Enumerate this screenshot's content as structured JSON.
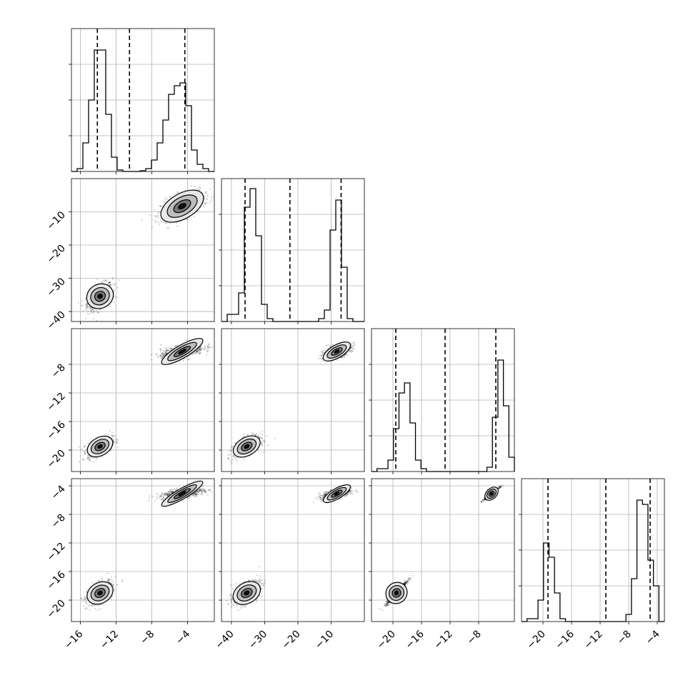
{
  "chart_data": {
    "type": "corner",
    "grid": true,
    "parameters": [
      {
        "range": [
          -17,
          -1
        ],
        "ticks": [
          -16,
          -12,
          -8,
          -4
        ]
      },
      {
        "range": [
          -43,
          0
        ],
        "ticks": [
          -40,
          -30,
          -20,
          -10
        ]
      },
      {
        "range": [
          -23,
          -3
        ],
        "ticks": [
          -20,
          -16,
          -12,
          -8
        ]
      },
      {
        "range": [
          -23,
          -3
        ],
        "ticks": [
          -20,
          -16,
          -12,
          -8,
          -4
        ]
      }
    ],
    "quantiles": [
      [
        -14.1,
        -10.5,
        -4.3
      ],
      [
        -35.9,
        -22.4,
        -7.0
      ],
      [
        -19.6,
        -12.7,
        -5.6
      ],
      [
        -19.3,
        -11.2,
        -5.0
      ]
    ],
    "histograms": [
      {
        "counts": [
          0.0,
          0.02,
          0.2,
          0.5,
          0.85,
          0.85,
          0.4,
          0.1,
          0.01,
          0.0,
          0.0,
          0.0,
          0.005,
          0.02,
          0.08,
          0.2,
          0.36,
          0.54,
          0.6,
          0.62,
          0.46,
          0.15,
          0.05,
          0.02,
          0.0
        ]
      },
      {
        "counts": [
          0.0,
          0.05,
          0.05,
          0.2,
          0.8,
          0.93,
          0.6,
          0.12,
          0.02,
          0.0,
          0.0,
          0.0,
          0.0,
          0.0,
          0.0,
          0.0,
          0.0,
          0.02,
          0.08,
          0.64,
          0.85,
          0.38,
          0.02,
          0.0,
          0.0
        ]
      },
      {
        "counts": [
          0.0,
          0.02,
          0.02,
          0.08,
          0.3,
          0.55,
          0.62,
          0.34,
          0.08,
          0.02,
          0.0,
          0.0,
          0.0,
          0.0,
          0.0,
          0.0,
          0.0,
          0.0,
          0.0,
          0.0,
          0.0,
          0.03,
          0.38,
          0.78,
          0.46,
          0.1
        ]
      },
      {
        "counts": [
          0.0,
          0.02,
          0.02,
          0.15,
          0.55,
          0.45,
          0.2,
          0.02,
          0.0,
          0.0,
          0.0,
          0.0,
          0.0,
          0.0,
          0.0,
          0.0,
          0.0,
          0.0,
          0.0,
          0.05,
          0.3,
          0.85,
          0.82,
          0.43,
          0.25,
          0.0
        ]
      }
    ],
    "clusters": [
      {
        "mean": [
          -13.8,
          -35.4,
          -19.5,
          -19.0
        ],
        "sd": [
          0.7,
          2.0,
          0.7,
          0.8
        ],
        "weight": 0.5
      },
      {
        "mean": [
          -4.6,
          -8.3,
          -6.2,
          -5.1
        ],
        "sd": [
          1.2,
          2.1,
          0.5,
          0.4
        ],
        "weight": 0.5
      }
    ]
  }
}
